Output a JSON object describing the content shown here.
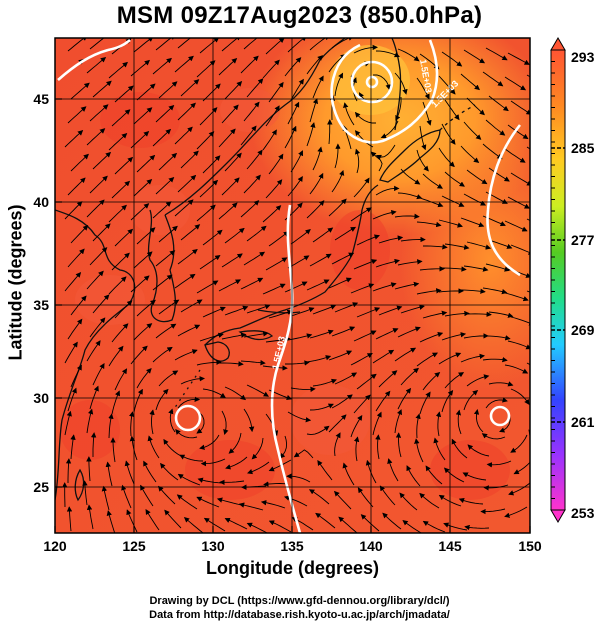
{
  "title": "MSM 09Z17Aug2023 (850.0hPa)",
  "axes": {
    "xlabel": "Longitude (degrees)",
    "ylabel": "Latitude  (degrees)",
    "x_ticks": [
      "120",
      "125",
      "130",
      "135",
      "140",
      "145",
      "150"
    ],
    "y_ticks": [
      "25",
      "30",
      "35",
      "40",
      "45"
    ],
    "xlim": [
      120,
      150
    ],
    "ylim": [
      22.4,
      47.6
    ]
  },
  "colorbar": {
    "ticks": [
      "293",
      "285",
      "277",
      "269",
      "261",
      "253"
    ],
    "range": [
      253,
      293
    ],
    "colors": [
      "#ff33cc",
      "#9933ff",
      "#3344ff",
      "#22ccff",
      "#22dd88",
      "#55cc22",
      "#ccee22",
      "#ffcc22",
      "#ff8822",
      "#ff5533"
    ]
  },
  "contours": {
    "label": "1.5E+03",
    "color": "#ffffff"
  },
  "field": {
    "base_color": "#f2542f",
    "warm_color": "#ff8a2a",
    "hot_spots": [
      "#ee3f2a",
      "#f25a3a"
    ]
  },
  "credits": {
    "line1": "Drawing by DCL (https://www.gfd-dennou.org/library/dcl/)",
    "line2": "Data from http://database.rish.kyoto-u.ac.jp/arch/jmadata/"
  }
}
